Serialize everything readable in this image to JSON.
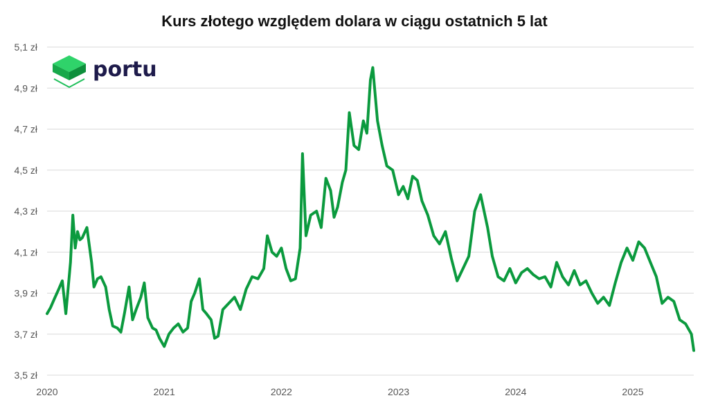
{
  "chart_data": {
    "type": "line",
    "title": "Kurs złotego względem dolara w ciągu ostatnich 5 lat",
    "xlabel": "",
    "ylabel": "",
    "x_ticks": [
      "2020",
      "2021",
      "2022",
      "2023",
      "2024",
      "2025"
    ],
    "y_ticks": [
      "3,5 zł",
      "3,7 zł",
      "3,9 zł",
      "4,1 zł",
      "4,3 zł",
      "4,5 zł",
      "4,7 zł",
      "4,9 zł",
      "5,1 zł"
    ],
    "xlim": [
      2020.0,
      2025.52
    ],
    "ylim": [
      3.5,
      5.1
    ],
    "grid": true,
    "colors": {
      "line": "#0b9a3e",
      "grid": "#d9d9d9",
      "logo_green": "#1fbf5a",
      "logo_text": "#1e1b4b"
    },
    "series": [
      {
        "x": [
          2020.0,
          2020.03,
          2020.06,
          2020.1,
          2020.13,
          2020.16,
          2020.2,
          2020.22,
          2020.24,
          2020.26,
          2020.28,
          2020.3,
          2020.34,
          2020.38,
          2020.4,
          2020.43,
          2020.46,
          2020.5,
          2020.53,
          2020.56,
          2020.6,
          2020.63,
          2020.66,
          2020.7,
          2020.73,
          2020.76,
          2020.8,
          2020.83,
          2020.86,
          2020.9,
          2020.93,
          2020.96,
          2021.0,
          2021.04,
          2021.08,
          2021.12,
          2021.16,
          2021.2,
          2021.23,
          2021.26,
          2021.3,
          2021.33,
          2021.36,
          2021.4,
          2021.43,
          2021.46,
          2021.5,
          2021.55,
          2021.6,
          2021.65,
          2021.7,
          2021.75,
          2021.8,
          2021.85,
          2021.88,
          2021.92,
          2021.96,
          2022.0,
          2022.04,
          2022.08,
          2022.12,
          2022.16,
          2022.18,
          2022.21,
          2022.25,
          2022.3,
          2022.34,
          2022.38,
          2022.42,
          2022.45,
          2022.48,
          2022.52,
          2022.55,
          2022.58,
          2022.62,
          2022.66,
          2022.7,
          2022.73,
          2022.76,
          2022.78,
          2022.82,
          2022.86,
          2022.9,
          2022.95,
          2023.0,
          2023.04,
          2023.08,
          2023.12,
          2023.16,
          2023.2,
          2023.25,
          2023.3,
          2023.35,
          2023.4,
          2023.45,
          2023.5,
          2023.55,
          2023.6,
          2023.65,
          2023.7,
          2023.76,
          2023.8,
          2023.85,
          2023.9,
          2023.95,
          2024.0,
          2024.05,
          2024.1,
          2024.15,
          2024.2,
          2024.25,
          2024.3,
          2024.35,
          2024.4,
          2024.45,
          2024.5,
          2024.55,
          2024.6,
          2024.65,
          2024.7,
          2024.75,
          2024.8,
          2024.85,
          2024.9,
          2024.95,
          2025.0,
          2025.05,
          2025.1,
          2025.15,
          2025.2,
          2025.25,
          2025.3,
          2025.35,
          2025.4,
          2025.45,
          2025.5,
          2025.52
        ],
        "y": [
          3.8,
          3.83,
          3.87,
          3.92,
          3.96,
          3.8,
          4.05,
          4.28,
          4.12,
          4.2,
          4.16,
          4.17,
          4.22,
          4.05,
          3.93,
          3.97,
          3.98,
          3.93,
          3.82,
          3.74,
          3.73,
          3.71,
          3.8,
          3.93,
          3.77,
          3.82,
          3.88,
          3.95,
          3.78,
          3.73,
          3.72,
          3.68,
          3.64,
          3.7,
          3.73,
          3.75,
          3.71,
          3.73,
          3.86,
          3.9,
          3.97,
          3.82,
          3.8,
          3.77,
          3.68,
          3.69,
          3.82,
          3.85,
          3.88,
          3.82,
          3.92,
          3.98,
          3.97,
          4.02,
          4.18,
          4.1,
          4.08,
          4.12,
          4.02,
          3.96,
          3.97,
          4.12,
          4.58,
          4.18,
          4.28,
          4.3,
          4.22,
          4.46,
          4.4,
          4.27,
          4.32,
          4.44,
          4.5,
          4.78,
          4.62,
          4.6,
          4.74,
          4.68,
          4.94,
          5.0,
          4.74,
          4.62,
          4.52,
          4.5,
          4.38,
          4.42,
          4.36,
          4.47,
          4.45,
          4.35,
          4.28,
          4.18,
          4.14,
          4.2,
          4.07,
          3.96,
          4.02,
          4.08,
          4.3,
          4.38,
          4.22,
          4.08,
          3.98,
          3.96,
          4.02,
          3.95,
          4.0,
          4.02,
          3.99,
          3.97,
          3.98,
          3.93,
          4.05,
          3.98,
          3.94,
          4.01,
          3.94,
          3.96,
          3.9,
          3.85,
          3.88,
          3.84,
          3.95,
          4.05,
          4.12,
          4.06,
          4.15,
          4.12,
          4.05,
          3.98,
          3.85,
          3.88,
          3.86,
          3.77,
          3.75,
          3.7,
          3.62
        ],
        "name": ""
      }
    ]
  },
  "logo": {
    "text": "portu"
  }
}
